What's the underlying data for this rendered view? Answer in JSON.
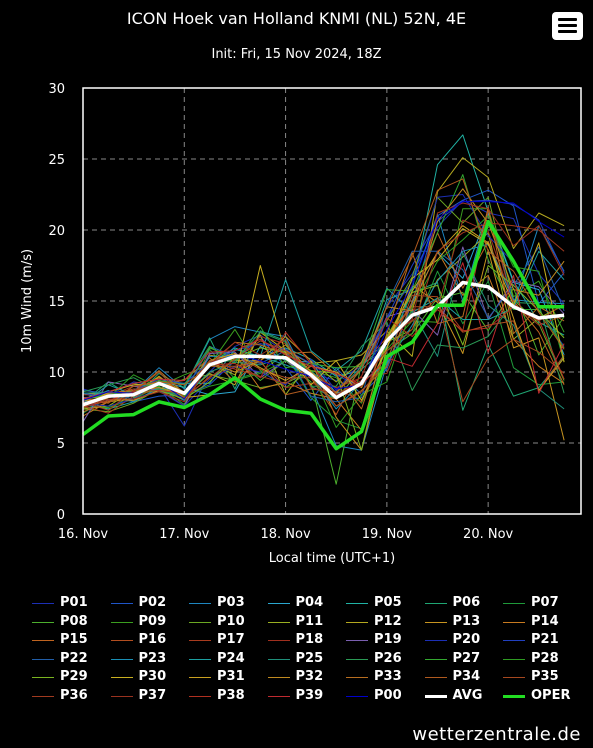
{
  "header": {
    "title": "ICON Hoek van Holland KNMI (NL) 52N, 4E",
    "subtitle": "Init: Fri, 15 Nov 2024, 18Z",
    "menu_icon": "hamburger-menu-icon"
  },
  "footer": {
    "site": "wetterzentrale.de"
  },
  "colors": {
    "background": "#000000",
    "grid": "#888888",
    "avg": "#ffffff",
    "oper": "#22dd22",
    "p00": "#0000cc"
  },
  "chart_data": {
    "type": "line",
    "ylabel": "10m Wind (m/s)",
    "xlabel": "Local time (UTC+1)",
    "ylim": [
      0,
      30
    ],
    "yticks": [
      "0",
      "5",
      "10",
      "15",
      "20",
      "25",
      "30"
    ],
    "xtick_labels": [
      "16. Nov",
      "17. Nov",
      "18. Nov",
      "19. Nov",
      "20. Nov"
    ],
    "x_hours_range": [
      0,
      118
    ],
    "x_tick_hours": [
      0,
      24,
      48,
      72,
      96
    ],
    "grid": true,
    "step_hours": 6,
    "avg": {
      "name": "AVG",
      "values": [
        7.7,
        8.3,
        8.4,
        9.2,
        8.5,
        10.5,
        11.1,
        11.1,
        11.0,
        9.8,
        8.2,
        9.2,
        12.2,
        14.0,
        14.6,
        16.3,
        16.0,
        14.6,
        13.8,
        14.0
      ]
    },
    "oper": {
      "name": "OPER",
      "values": [
        5.6,
        6.9,
        7.0,
        7.9,
        7.5,
        8.4,
        9.6,
        8.1,
        7.3,
        7.1,
        4.6,
        5.8,
        11.1,
        12.1,
        14.7,
        14.7,
        20.6,
        17.8,
        14.6,
        14.6
      ]
    },
    "series_names": [
      "P01",
      "P02",
      "P03",
      "P04",
      "P05",
      "P06",
      "P07",
      "P08",
      "P09",
      "P10",
      "P11",
      "P12",
      "P13",
      "P14",
      "P15",
      "P16",
      "P17",
      "P18",
      "P19",
      "P20",
      "P21",
      "P22",
      "P23",
      "P24",
      "P25",
      "P26",
      "P27",
      "P28",
      "P29",
      "P30",
      "P31",
      "P32",
      "P33",
      "P34",
      "P35",
      "P36",
      "P37",
      "P38",
      "P39",
      "P00"
    ],
    "series_colors": [
      "#1c2fb5",
      "#1f55c8",
      "#1e86c0",
      "#2aa7cf",
      "#20b3a5",
      "#1fa673",
      "#1f9a3a",
      "#4caf2d",
      "#3b9e1f",
      "#6ba822",
      "#9ab021",
      "#b4a81f",
      "#c79420",
      "#c77a20",
      "#c06420",
      "#b24e20",
      "#a93c1f",
      "#a1301f",
      "#7a5fb0",
      "#1c2fb5",
      "#2140c0",
      "#215ea8",
      "#1a8fb5",
      "#1c9fa0",
      "#1f8f7a",
      "#2a9a55",
      "#33a830",
      "#2e9b22",
      "#7ab420",
      "#c9b020",
      "#c9a020",
      "#c08a20",
      "#b86e20",
      "#b05a1f",
      "#a6481f",
      "#a23a1f",
      "#9a321f",
      "#b13020",
      "#c02a30",
      "#0000cc"
    ],
    "ensemble": [
      [
        8.8,
        8.3,
        9.3,
        9.0,
        6.2,
        10.0,
        11.8,
        12.6,
        11.4,
        9.9,
        9.4,
        10.4,
        14.6,
        16.9,
        20.2,
        22.1,
        21.2,
        20.8,
        16.9,
        14.8
      ],
      [
        8.2,
        8.3,
        7.9,
        8.3,
        8.4,
        9.1,
        10.8,
        12.5,
        10.3,
        8.0,
        10.3,
        8.4,
        10.2,
        14.9,
        21.0,
        22.1,
        22.8,
        21.7,
        14.8,
        17.0
      ],
      [
        8.5,
        8.5,
        8.6,
        10.3,
        8.8,
        12.3,
        13.2,
        12.8,
        12.5,
        9.0,
        4.8,
        4.5,
        10.6,
        16.1,
        21.1,
        15.0,
        21.4,
        14.8,
        20.3,
        17.1
      ],
      [
        8.5,
        8.0,
        8.5,
        9.4,
        8.9,
        8.4,
        8.6,
        11.8,
        10.8,
        10.7,
        8.5,
        9.1,
        11.8,
        14.9,
        18.4,
        16.6,
        21.2,
        16.3,
        15.8,
        11.2
      ],
      [
        7.7,
        7.4,
        7.9,
        8.9,
        8.6,
        10.6,
        11.7,
        11.0,
        11.7,
        10.9,
        9.7,
        10.1,
        15.1,
        15.8,
        24.6,
        26.7,
        21.3,
        16.4,
        13.5,
        12.6
      ],
      [
        7.9,
        9.3,
        8.2,
        9.9,
        8.9,
        12.4,
        8.8,
        12.9,
        12.2,
        9.0,
        8.1,
        10.2,
        11.7,
        15.6,
        16.3,
        7.3,
        11.9,
        8.3,
        8.9,
        11.1
      ],
      [
        7.1,
        8.2,
        8.6,
        9.0,
        7.7,
        11.6,
        9.5,
        10.0,
        11.3,
        8.2,
        6.6,
        6.0,
        12.2,
        12.7,
        17.1,
        13.4,
        16.4,
        10.3,
        9.1,
        9.3
      ],
      [
        8.1,
        7.3,
        8.5,
        8.8,
        8.5,
        11.7,
        11.0,
        9.4,
        10.8,
        9.3,
        2.1,
        10.6,
        11.5,
        12.7,
        15.2,
        15.6,
        12.9,
        15.9,
        11.2,
        13.9
      ],
      [
        7.5,
        7.5,
        8.1,
        9.0,
        9.8,
        10.5,
        13.0,
        10.1,
        8.9,
        10.1,
        9.6,
        7.8,
        11.6,
        13.6,
        13.5,
        21.5,
        21.5,
        15.3,
        16.4,
        12.8
      ],
      [
        7.4,
        7.2,
        7.8,
        8.8,
        9.5,
        9.8,
        9.4,
        8.9,
        9.2,
        10.1,
        8.1,
        10.2,
        13.6,
        16.7,
        22.3,
        20.5,
        22.3,
        15.1,
        13.4,
        9.4
      ],
      [
        7.4,
        7.6,
        8.7,
        9.6,
        8.6,
        10.6,
        9.8,
        12.6,
        8.4,
        10.8,
        9.3,
        10.7,
        12.1,
        13.0,
        16.5,
        18.1,
        19.8,
        12.3,
        13.8,
        14.7
      ],
      [
        8.5,
        8.4,
        8.5,
        9.7,
        8.3,
        9.9,
        9.1,
        12.8,
        11.5,
        10.6,
        10.8,
        11.2,
        12.9,
        11.1,
        22.7,
        25.1,
        23.7,
        18.7,
        21.2,
        20.3
      ],
      [
        7.7,
        7.9,
        8.1,
        9.7,
        8.4,
        11.2,
        10.8,
        10.8,
        12.5,
        10.8,
        6.8,
        4.5,
        11.7,
        16.1,
        14.9,
        11.3,
        18.6,
        11.7,
        12.4,
        5.2
      ],
      [
        6.9,
        7.9,
        8.7,
        9.4,
        8.6,
        10.6,
        11.3,
        8.8,
        9.3,
        8.5,
        8.1,
        5.9,
        12.5,
        14.7,
        18.5,
        15.4,
        16.8,
        12.3,
        10.4,
        9.2
      ],
      [
        7.2,
        7.9,
        8.4,
        9.2,
        9.4,
        11.0,
        9.3,
        11.0,
        11.6,
        10.0,
        7.6,
        8.7,
        10.4,
        15.0,
        19.8,
        15.9,
        19.2,
        15.0,
        12.8,
        9.1
      ],
      [
        8.4,
        8.4,
        8.8,
        8.8,
        7.6,
        10.7,
        11.2,
        10.2,
        9.6,
        9.6,
        7.0,
        10.6,
        12.4,
        14.6,
        14.6,
        12.8,
        13.3,
        13.6,
        8.7,
        11.2
      ],
      [
        7.6,
        7.1,
        8.3,
        8.8,
        8.1,
        9.7,
        10.3,
        10.7,
        8.9,
        9.2,
        8.9,
        7.9,
        12.5,
        13.6,
        15.2,
        12.9,
        21.4,
        14.6,
        13.6,
        14.8
      ],
      [
        7.9,
        8.3,
        9.0,
        8.9,
        8.0,
        10.6,
        11.0,
        12.5,
        12.0,
        9.9,
        8.9,
        9.6,
        9.9,
        14.4,
        14.5,
        20.7,
        19.9,
        14.8,
        13.3,
        14.0
      ],
      [
        6.5,
        9.3,
        9.0,
        8.7,
        7.6,
        11.3,
        11.4,
        9.6,
        10.8,
        9.6,
        8.6,
        10.2,
        13.9,
        14.4,
        12.6,
        18.8,
        13.7,
        16.4,
        16.0,
        14.1
      ],
      [
        7.8,
        7.6,
        8.1,
        8.7,
        7.6,
        9.5,
        10.4,
        10.0,
        9.1,
        10.9,
        8.7,
        10.7,
        13.8,
        16.4,
        22.3,
        22.5,
        19.6,
        17.7,
        14.4,
        11.8
      ],
      [
        8.5,
        8.2,
        8.7,
        9.5,
        9.2,
        10.7,
        11.5,
        12.0,
        11.6,
        10.6,
        9.8,
        8.9,
        13.8,
        17.5,
        20.6,
        22.0,
        22.1,
        21.8,
        20.7,
        17.0
      ],
      [
        8.7,
        8.5,
        8.1,
        9.3,
        8.5,
        11.8,
        11.1,
        10.6,
        11.5,
        8.3,
        7.9,
        8.2,
        14.8,
        18.5,
        18.5,
        17.2,
        13.8,
        16.1,
        18.8,
        14.3
      ],
      [
        8.0,
        8.7,
        7.9,
        8.9,
        8.0,
        11.1,
        11.1,
        11.1,
        10.5,
        9.8,
        7.4,
        9.3,
        10.6,
        13.3,
        16.4,
        18.5,
        19.0,
        15.1,
        14.9,
        14.8
      ],
      [
        7.8,
        9.1,
        8.4,
        9.2,
        9.2,
        9.2,
        11.6,
        11.1,
        16.5,
        11.5,
        10.1,
        11.5,
        15.9,
        14.2,
        15.2,
        13.7,
        13.7,
        14.5,
        18.5,
        16.5
      ],
      [
        8.5,
        8.6,
        9.2,
        8.8,
        8.3,
        10.0,
        10.7,
        10.5,
        11.1,
        10.1,
        8.5,
        10.4,
        12.1,
        14.3,
        11.1,
        18.4,
        14.7,
        13.3,
        8.8,
        7.4
      ],
      [
        8.6,
        9.1,
        9.6,
        8.7,
        8.3,
        10.7,
        10.8,
        12.8,
        12.1,
        9.0,
        9.0,
        11.8,
        13.5,
        8.7,
        11.9,
        11.7,
        12.5,
        14.9,
        14.8,
        8.5
      ],
      [
        8.0,
        8.5,
        8.6,
        9.4,
        9.1,
        11.8,
        10.6,
        13.2,
        10.3,
        10.6,
        10.3,
        10.4,
        15.8,
        15.7,
        19.8,
        23.9,
        17.9,
        14.4,
        14.4,
        11.7
      ],
      [
        7.7,
        8.2,
        9.8,
        8.9,
        8.3,
        9.0,
        9.4,
        9.9,
        10.8,
        10.1,
        6.1,
        8.4,
        9.3,
        14.6,
        17.8,
        19.3,
        21.0,
        17.4,
        17.1,
        10.7
      ],
      [
        8.1,
        8.3,
        8.5,
        8.7,
        8.1,
        9.3,
        11.0,
        11.7,
        11.4,
        10.1,
        9.9,
        4.5,
        12.5,
        15.6,
        16.1,
        11.9,
        17.5,
        16.1,
        14.3,
        12.4
      ],
      [
        7.5,
        8.6,
        9.1,
        9.2,
        8.2,
        8.4,
        9.6,
        17.5,
        11.3,
        9.1,
        10.8,
        8.0,
        11.7,
        16.6,
        17.9,
        20.1,
        19.0,
        14.7,
        19.1,
        10.7
      ],
      [
        8.0,
        8.1,
        8.0,
        8.7,
        8.6,
        10.8,
        11.3,
        10.3,
        9.4,
        10.4,
        10.0,
        8.9,
        12.3,
        15.7,
        18.4,
        20.3,
        19.1,
        13.8,
        8.7,
        11.0
      ],
      [
        7.5,
        8.5,
        8.7,
        8.9,
        8.4,
        10.7,
        10.0,
        10.8,
        11.9,
        10.0,
        8.5,
        10.7,
        14.6,
        14.3,
        20.6,
        22.9,
        20.5,
        15.8,
        15.4,
        17.8
      ],
      [
        7.8,
        8.2,
        8.6,
        10.1,
        8.5,
        10.6,
        12.1,
        11.9,
        11.3,
        11.4,
        9.8,
        7.4,
        12.7,
        18.4,
        13.4,
        13.9,
        21.6,
        12.7,
        14.6,
        13.6
      ],
      [
        8.2,
        7.8,
        9.0,
        9.3,
        9.1,
        10.4,
        10.4,
        10.8,
        8.4,
        8.8,
        8.6,
        10.2,
        14.6,
        18.1,
        22.8,
        23.6,
        18.5,
        17.1,
        14.2,
        11.6
      ],
      [
        7.8,
        8.3,
        8.6,
        10.0,
        8.2,
        9.6,
        10.9,
        12.2,
        11.5,
        9.6,
        7.6,
        8.6,
        10.8,
        15.4,
        15.3,
        7.9,
        11.0,
        12.3,
        11.4,
        9.9
      ],
      [
        7.9,
        7.3,
        8.7,
        9.2,
        8.6,
        10.8,
        10.2,
        9.7,
        9.2,
        10.5,
        8.4,
        9.4,
        11.5,
        13.0,
        18.5,
        19.8,
        20.5,
        20.3,
        20.0,
        18.5
      ],
      [
        7.6,
        8.1,
        8.1,
        8.6,
        7.9,
        10.5,
        12.1,
        11.2,
        12.3,
        8.9,
        8.4,
        9.0,
        12.2,
        13.7,
        21.2,
        21.9,
        21.5,
        18.9,
        20.3,
        16.8
      ],
      [
        7.5,
        8.0,
        8.6,
        8.7,
        8.5,
        10.5,
        10.6,
        9.6,
        12.8,
        10.6,
        8.1,
        9.7,
        13.8,
        12.5,
        14.4,
        12.9,
        13.1,
        14.6,
        13.7,
        9.5
      ],
      [
        8.1,
        8.6,
        9.2,
        9.5,
        9.4,
        11.4,
        11.5,
        12.3,
        11.2,
        10.4,
        9.9,
        9.1,
        11.0,
        10.4,
        13.4,
        17.7,
        11.4,
        16.8,
        8.5,
        12.0
      ],
      [
        8.0,
        8.6,
        8.5,
        9.3,
        8.1,
        10.6,
        11.2,
        10.8,
        10.2,
        9.7,
        8.8,
        9.1,
        13.0,
        16.1,
        20.8,
        22.0,
        22.0,
        21.9,
        20.6,
        19.5
      ]
    ],
    "legend": [
      "P01",
      "P02",
      "P03",
      "P04",
      "P05",
      "P06",
      "P07",
      "P08",
      "P09",
      "P10",
      "P11",
      "P12",
      "P13",
      "P14",
      "P15",
      "P16",
      "P17",
      "P18",
      "P19",
      "P20",
      "P21",
      "P22",
      "P23",
      "P24",
      "P25",
      "P26",
      "P27",
      "P28",
      "P29",
      "P30",
      "P31",
      "P32",
      "P33",
      "P34",
      "P35",
      "P36",
      "P37",
      "P38",
      "P39",
      "P00",
      "AVG",
      "OPER"
    ]
  }
}
